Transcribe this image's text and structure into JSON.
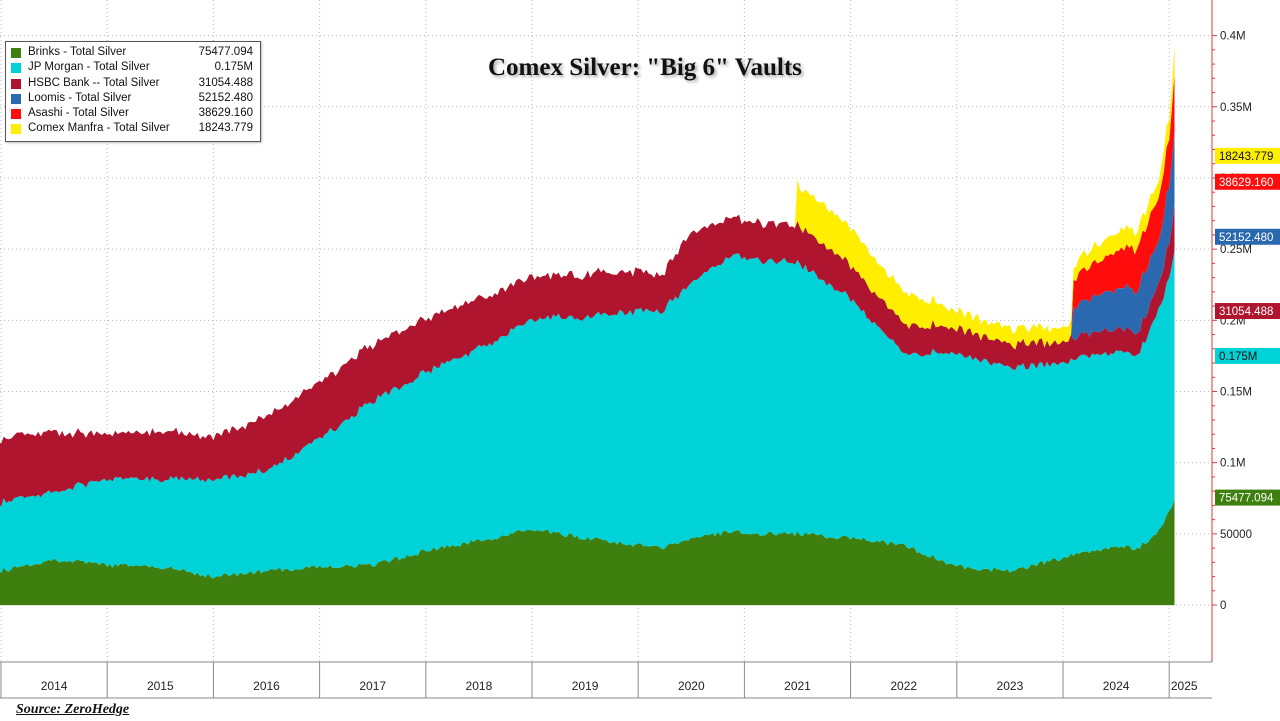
{
  "title": "Comex Silver: \"Big 6\" Vaults",
  "source": "Source: ZeroHedge",
  "legend": [
    {
      "label": "Brinks - Total Silver",
      "value": "75477.094",
      "color": "#3f7f10"
    },
    {
      "label": "JP Morgan - Total Silver",
      "value": "0.175M",
      "color": "#00d2d8"
    },
    {
      "label": "HSBC Bank -- Total Silver",
      "value": "31054.488",
      "color": "#b0152f"
    },
    {
      "label": "Loomis - Total Silver",
      "value": "52152.480",
      "color": "#2a69b0"
    },
    {
      "label": "Asashi - Total Silver",
      "value": "38629.160",
      "color": "#ff0d0d"
    },
    {
      "label": "Comex Manfra - Total Silver",
      "value": "18243.779",
      "color": "#ffee00"
    }
  ],
  "chart_data": {
    "type": "area",
    "stacked": true,
    "x": [
      2013.6,
      2014.0,
      2014.5,
      2015.0,
      2015.5,
      2016.0,
      2016.5,
      2017.0,
      2017.5,
      2018.0,
      2018.5,
      2019.0,
      2019.5,
      2020.0,
      2020.2,
      2020.5,
      2020.9,
      2021.0,
      2021.5,
      2022.0,
      2022.5,
      2023.0,
      2023.5,
      2024.0,
      2024.1,
      2024.5,
      2024.7,
      2024.8,
      2024.9,
      2025.0,
      2025.05
    ],
    "series": [
      {
        "name": "Brinks - Total Silver",
        "color": "#3f7f10",
        "values": [
          23000,
          24000,
          32000,
          28000,
          27000,
          20000,
          24000,
          27000,
          28000,
          38000,
          45000,
          53000,
          47000,
          42000,
          40000,
          47000,
          52000,
          50000,
          50000,
          47000,
          42000,
          27000,
          24000,
          33000,
          36000,
          41000,
          40000,
          45000,
          52000,
          65000,
          75477.094
        ]
      },
      {
        "name": "JP Morgan - Total Silver",
        "color": "#00d2d8",
        "values": [
          45000,
          48000,
          48000,
          60000,
          62000,
          68000,
          70000,
          90000,
          115000,
          125000,
          135000,
          148000,
          155000,
          165000,
          165000,
          180000,
          193000,
          193000,
          190000,
          168000,
          135000,
          150000,
          143000,
          137000,
          137000,
          137000,
          137000,
          145000,
          155000,
          165000,
          175000
        ]
      },
      {
        "name": "HSBC Bank -- Total Silver",
        "color": "#b0152f",
        "values": [
          48000,
          45000,
          42000,
          31000,
          34000,
          30000,
          38000,
          40000,
          40000,
          38000,
          35000,
          30000,
          30000,
          28000,
          25000,
          35000,
          26000,
          26000,
          27000,
          24000,
          20000,
          18000,
          16000,
          15000,
          15000,
          16000,
          16000,
          17000,
          18000,
          25000,
          31054.488
        ]
      },
      {
        "name": "Loomis - Total Silver",
        "color": "#2a69b0",
        "values": [
          0,
          0,
          0,
          0,
          0,
          0,
          0,
          0,
          0,
          0,
          0,
          0,
          0,
          0,
          0,
          0,
          0,
          0,
          0,
          0,
          0,
          0,
          0,
          0,
          22000,
          28000,
          30000,
          32000,
          30000,
          40000,
          52152.48
        ]
      },
      {
        "name": "Asashi - Total Silver",
        "color": "#ff0d0d",
        "values": [
          0,
          0,
          0,
          0,
          0,
          0,
          0,
          0,
          0,
          0,
          0,
          0,
          0,
          0,
          0,
          0,
          0,
          0,
          0,
          0,
          0,
          0,
          0,
          0,
          20000,
          26000,
          30000,
          30000,
          30000,
          35000,
          38629.16
        ]
      },
      {
        "name": "Comex Manfra - Total Silver",
        "color": "#ffee00",
        "values": [
          0,
          0,
          0,
          0,
          0,
          0,
          0,
          0,
          0,
          0,
          0,
          0,
          0,
          0,
          0,
          0,
          0,
          0,
          28000,
          27000,
          22000,
          12000,
          11000,
          10000,
          10000,
          13000,
          12000,
          12000,
          12000,
          15000,
          18243.779
        ]
      }
    ],
    "xticks": [
      "2014",
      "2015",
      "2016",
      "2017",
      "2018",
      "2019",
      "2020",
      "2021",
      "2022",
      "2023",
      "2024",
      "2025"
    ],
    "yticks": [
      {
        "value": 0,
        "label": "0"
      },
      {
        "value": 50000,
        "label": "50000"
      },
      {
        "value": 100000,
        "label": "0.1M"
      },
      {
        "value": 150000,
        "label": "0.15M"
      },
      {
        "value": 200000,
        "label": "0.2M"
      },
      {
        "value": 250000,
        "label": "0.25M"
      },
      {
        "value": 300000,
        "label": "0.3M"
      },
      {
        "value": 350000,
        "label": "0.35M"
      },
      {
        "value": 400000,
        "label": "0.4M"
      }
    ],
    "ylim": [
      -40000,
      425000
    ],
    "y_axis_side": "right",
    "grid": true,
    "legend_position": "top-left",
    "last_value_labels": [
      {
        "value": 75477.094,
        "label": "75477.094",
        "color": "#3f7f10"
      },
      {
        "value": 175000,
        "label": "0.175M",
        "color": "#00d2d8"
      },
      {
        "value": 206531.582,
        "label": "31054.488",
        "color": "#b0152f"
      },
      {
        "value": 258684.062,
        "label": "52152.480",
        "color": "#2a69b0"
      },
      {
        "value": 297313.222,
        "label": "38629.160",
        "color": "#ff0d0d"
      },
      {
        "value": 315557.001,
        "label": "18243.779",
        "color": "#ffee00"
      }
    ]
  }
}
